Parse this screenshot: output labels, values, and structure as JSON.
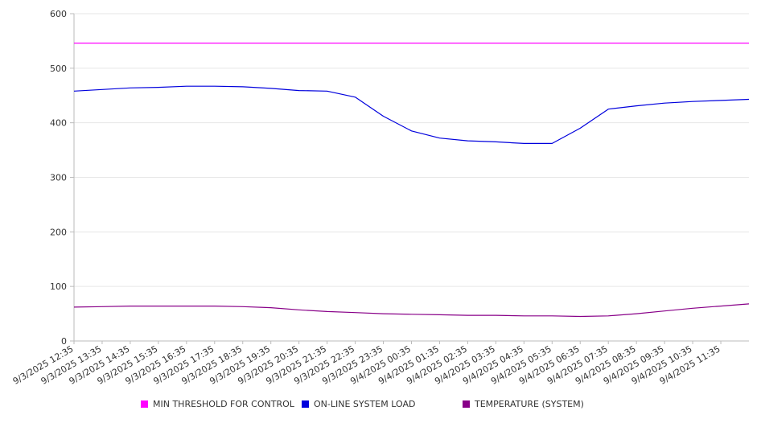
{
  "chart_data": {
    "type": "line",
    "title": "",
    "xlabel": "",
    "ylabel": "",
    "ylim": [
      0,
      600
    ],
    "yticks": [
      0,
      100,
      200,
      300,
      400,
      500,
      600
    ],
    "grid": true,
    "legend_position": "bottom",
    "x_tick_labels": [
      "9/3/2025 12:35",
      "9/3/2025 13:35",
      "9/3/2025 14:35",
      "9/3/2025 15:35",
      "9/3/2025 16:35",
      "9/3/2025 17:35",
      "9/3/2025 18:35",
      "9/3/2025 19:35",
      "9/3/2025 20:35",
      "9/3/2025 21:35",
      "9/3/2025 22:35",
      "9/3/2025 23:35",
      "9/4/2025 00:35",
      "9/4/2025 01:35",
      "9/4/2025 02:35",
      "9/4/2025 03:35",
      "9/4/2025 04:35",
      "9/4/2025 05:35",
      "9/4/2025 06:35",
      "9/4/2025 07:35",
      "9/4/2025 08:35",
      "9/4/2025 09:35",
      "9/4/2025 10:35",
      "9/4/2025 11:35"
    ],
    "x_hours": [
      0,
      1,
      2,
      3,
      4,
      5,
      6,
      7,
      8,
      9,
      10,
      11,
      12,
      13,
      14,
      15,
      16,
      17,
      18,
      19,
      20,
      21,
      22,
      23,
      24
    ],
    "series": [
      {
        "name": "MIN THRESHOLD FOR CONTROL",
        "color": "#ff00ff",
        "values": [
          546,
          546,
          546,
          546,
          546,
          546,
          546,
          546,
          546,
          546,
          546,
          546,
          546,
          546,
          546,
          546,
          546,
          546,
          546,
          546,
          546,
          546,
          546,
          546,
          546
        ]
      },
      {
        "name": "ON-LINE SYSTEM LOAD",
        "color": "#0000dd",
        "values": [
          458,
          461,
          464,
          465,
          467,
          467,
          466,
          463,
          459,
          458,
          447,
          412,
          385,
          372,
          367,
          365,
          362,
          362,
          390,
          425,
          431,
          436,
          439,
          441,
          443
        ]
      },
      {
        "name": "TEMPERATURE (SYSTEM)",
        "color": "#880088",
        "values": [
          62,
          63,
          64,
          64,
          64,
          64,
          63,
          61,
          57,
          54,
          52,
          50,
          49,
          48,
          47,
          47,
          46,
          46,
          45,
          46,
          50,
          55,
          60,
          64,
          68
        ]
      }
    ]
  }
}
